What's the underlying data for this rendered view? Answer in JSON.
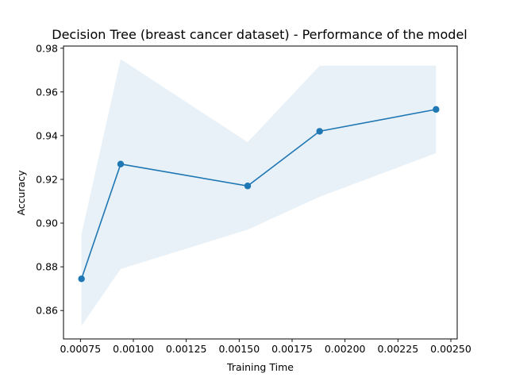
{
  "chart_data": {
    "type": "line",
    "title": "Decision Tree (breast cancer dataset) - Performance of the model",
    "xlabel": "Training Time",
    "ylabel": "Accuracy",
    "xlim": [
      0.00067,
      0.00253
    ],
    "ylim": [
      0.847,
      0.981
    ],
    "x_ticks": [
      0.00075,
      0.001,
      0.00125,
      0.0015,
      0.00175,
      0.002,
      0.00225,
      0.0025
    ],
    "x_tick_labels": [
      "0.00075",
      "0.00100",
      "0.00125",
      "0.00150",
      "0.00175",
      "0.00200",
      "0.00225",
      "0.00250"
    ],
    "y_ticks": [
      0.86,
      0.88,
      0.9,
      0.92,
      0.94,
      0.96,
      0.98
    ],
    "y_tick_labels": [
      "0.86",
      "0.88",
      "0.90",
      "0.92",
      "0.94",
      "0.96",
      "0.98"
    ],
    "grid": false,
    "series": [
      {
        "x": [
          0.000755,
          0.00094,
          0.00154,
          0.00188,
          0.00243
        ],
        "y": [
          0.8745,
          0.927,
          0.917,
          0.942,
          0.952
        ],
        "band_lower": [
          0.853,
          0.879,
          0.897,
          0.912,
          0.932
        ],
        "band_upper": [
          0.895,
          0.975,
          0.937,
          0.972,
          0.972
        ],
        "color": "#1f77b4",
        "band_color": "#1f77b4"
      }
    ]
  }
}
